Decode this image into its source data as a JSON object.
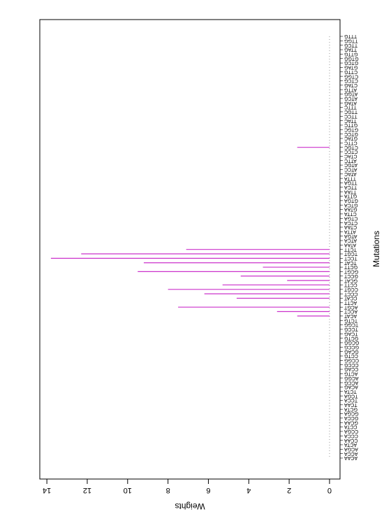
{
  "chart_data": {
    "type": "bar",
    "orientation": "horizontal",
    "y_label": "Weights",
    "x_label": "Mutations",
    "categories": [
      "ACAA",
      "ACCA",
      "ACGA",
      "ACTA",
      "CCAA",
      "CCCA",
      "CCGA",
      "CCTA",
      "GCAA",
      "GCCA",
      "GCGA",
      "GCTA",
      "TCAA",
      "TCCA",
      "TCGA",
      "TCTA",
      "ACAG",
      "ACCG",
      "ACGG",
      "ACTG",
      "CCAG",
      "CCCG",
      "CCGG",
      "CCTG",
      "GCAG",
      "GCCG",
      "GCGG",
      "GCTG",
      "TCAG",
      "TCCG",
      "TCGG",
      "TCTG",
      "ACAT",
      "ACCT",
      "ACGT",
      "ACTT",
      "CCAT",
      "CCCT",
      "CCGT",
      "CCTT",
      "GCAT",
      "GCCT",
      "GCGT",
      "GCTT",
      "TCAT",
      "TCCT",
      "TCGT",
      "TCTT",
      "ATAA",
      "ATCA",
      "ATGA",
      "ATTA",
      "CTAA",
      "CTCA",
      "CTGA",
      "CTTA",
      "GTAA",
      "GTCA",
      "GTGA",
      "GTTA",
      "TTAA",
      "TTCA",
      "TTGA",
      "TTTA",
      "ATAC",
      "ATCC",
      "ATGC",
      "ATTC",
      "CTAC",
      "CTCC",
      "CTGC",
      "CTTC",
      "GTAC",
      "GTCC",
      "GTGC",
      "GTTC",
      "TTAC",
      "TTCC",
      "TTGC",
      "TTTC",
      "ATAG",
      "ATCG",
      "ATGG",
      "ATTG",
      "CTAG",
      "CTCG",
      "CTGG",
      "CTTG",
      "GTAG",
      "GTCG",
      "GTGG",
      "GTTG",
      "TTAG",
      "TTCG",
      "TTGG",
      "TTTG"
    ],
    "values": [
      0,
      0,
      0,
      0,
      0,
      0,
      0,
      0,
      0,
      0,
      0,
      0,
      0,
      0,
      0,
      0,
      0,
      0,
      0,
      0,
      0,
      0,
      0,
      0,
      0,
      0,
      0,
      0,
      0,
      0,
      0,
      0,
      1.6,
      2.6,
      7.5,
      0,
      4.6,
      6.2,
      8.0,
      5.3,
      2.1,
      4.4,
      9.5,
      3.3,
      9.2,
      13.8,
      12.3,
      7.1,
      0,
      0,
      0,
      0,
      0,
      0,
      0,
      0,
      0,
      0,
      0,
      0,
      0,
      0,
      0,
      0,
      0,
      0,
      0,
      0,
      0,
      0,
      1.6,
      0,
      0,
      0,
      0,
      0,
      0,
      0,
      0,
      0,
      0,
      0,
      0,
      0,
      0,
      0,
      0,
      0,
      0,
      0,
      0,
      0,
      0,
      0,
      0,
      0
    ],
    "color": "#cc33cc",
    "ylim": [
      -0.52,
      14.35
    ],
    "yticks": [
      0,
      2,
      4,
      6,
      8,
      10,
      12,
      14
    ],
    "grid": false
  }
}
